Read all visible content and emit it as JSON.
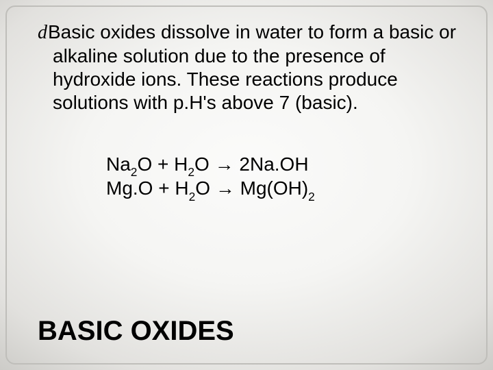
{
  "body_text": "Basic oxides dissolve in water to form a basic or alkaline solution due to the presence of hydroxide ions.  These reactions produce solutions with p.H's above 7 (basic).",
  "bullet_glyph": "d",
  "equations": {
    "line1": {
      "r1_base": "Na",
      "r1_sub": "2",
      "r1_tail": "O",
      "plus": "  +  ",
      "r2_base": "H",
      "r2_sub": "2",
      "r2_tail": "O",
      "arrow": "   →   ",
      "p_pre": "2",
      "p_main": "Na.OH"
    },
    "line2": {
      "r1": "Mg.O",
      "plus": "  +  ",
      "r2_base": "H",
      "r2_sub": "2",
      "r2_tail": "O",
      "arrow": "   →   ",
      "p_main": "Mg(OH)",
      "p_sub": "2"
    }
  },
  "title": "BASIC OXIDES",
  "colors": {
    "text": "#000000",
    "border": "#bfbeba",
    "bg_center": "#fbfbfa",
    "bg_edge": "#adaca7"
  },
  "fontsizes": {
    "body_pt": 28,
    "equations_pt": 28,
    "title_pt": 40
  }
}
